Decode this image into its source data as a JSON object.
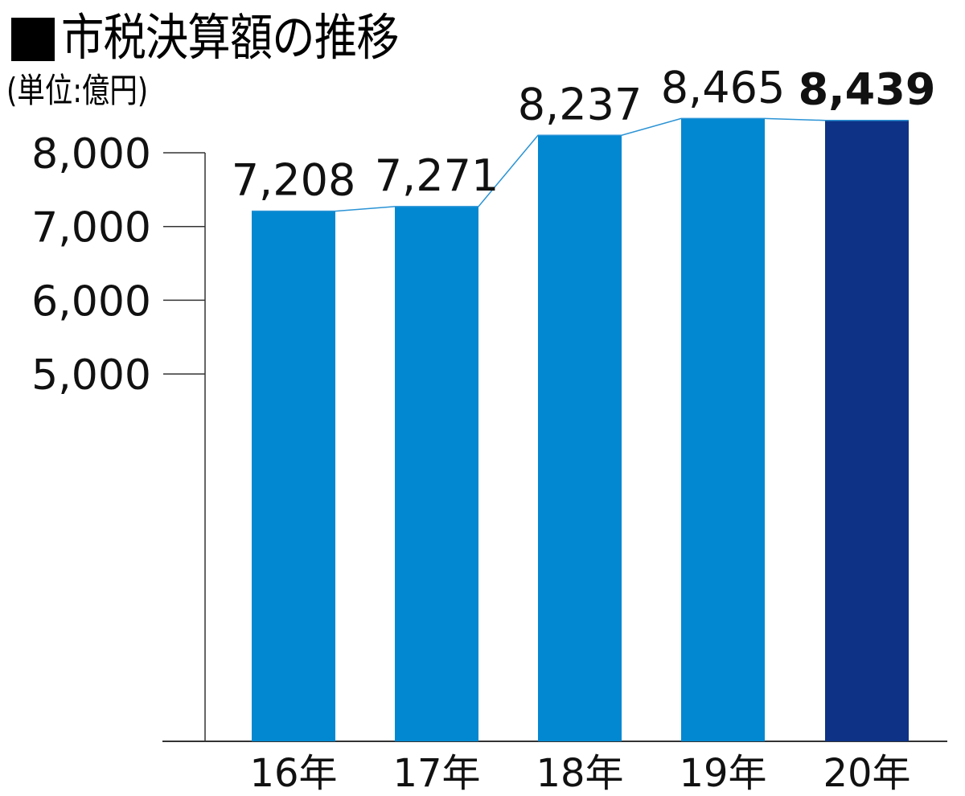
{
  "title": {
    "marker": "■",
    "text": "市税決算額の推移"
  },
  "unit_label": "(単位:億円)",
  "colors": {
    "bar": "#0288d1",
    "bar_highlight": "#0d3286",
    "connector": "#2a93d5",
    "axis": "#333333"
  },
  "chart_data": {
    "type": "bar",
    "title": "市税決算額の推移",
    "subtitle": "(単位:億円)",
    "xlabel": "",
    "ylabel": "億円",
    "categories": [
      "16年",
      "17年",
      "18年",
      "19年",
      "20年"
    ],
    "values": [
      7208,
      7271,
      8237,
      8465,
      8439
    ],
    "value_labels": [
      "7,208",
      "7,271",
      "8,237",
      "8,465",
      "8,439"
    ],
    "highlight_index": 4,
    "yticks": [
      5000,
      6000,
      7000,
      8000
    ],
    "ytick_labels": [
      "5,000",
      "6,000",
      "7,000",
      "8,000"
    ],
    "ylim_note": "axis break below 5,000 (bars extend to baseline)",
    "connector_line": true,
    "grid": false,
    "legend": null
  }
}
